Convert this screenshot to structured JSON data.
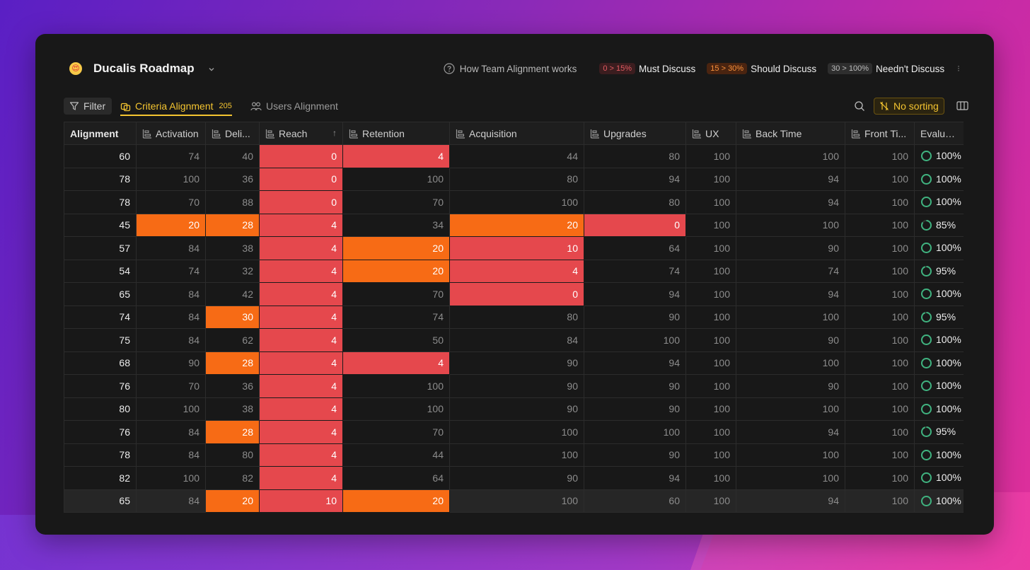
{
  "app": {
    "title": "Ducalis Roadmap",
    "emoji": "😍"
  },
  "legend": {
    "help_label": "How Team Alignment works",
    "items": [
      {
        "range": "0 > 15%",
        "label": "Must Discuss",
        "kind": "must"
      },
      {
        "range": "15 > 30%",
        "label": "Should Discuss",
        "kind": "should"
      },
      {
        "range": "30 > 100%",
        "label": "Needn't Discuss",
        "kind": "neednt"
      }
    ]
  },
  "toolbar": {
    "filter_label": "Filter",
    "tab_criteria": "Criteria Alignment",
    "tab_criteria_count": "205",
    "tab_users": "Users Alignment",
    "sort_label": "No sorting"
  },
  "colors": {
    "must": "#e5484d",
    "should": "#f76b15",
    "accent": "#f4c430",
    "eval_ring": "#3fb27f"
  },
  "table": {
    "columns": [
      "Alignment",
      "Activation",
      "Deli...",
      "Reach",
      "Retention",
      "Acquisition",
      "Upgrades",
      "UX",
      "Back Time",
      "Front Ti...",
      "Evaluat..."
    ],
    "rows": [
      {
        "a": "60",
        "c": [
          "74",
          "40",
          "0",
          "4",
          "44",
          "80",
          "100",
          "100",
          "100"
        ],
        "k": [
          "",
          "",
          "r",
          "r",
          "",
          "",
          "",
          "",
          ""
        ],
        "e": "100%",
        "p": 100
      },
      {
        "a": "78",
        "c": [
          "100",
          "36",
          "0",
          "100",
          "80",
          "94",
          "100",
          "94",
          "100"
        ],
        "k": [
          "",
          "",
          "r",
          "",
          "",
          "",
          "",
          "",
          ""
        ],
        "e": "100%",
        "p": 100
      },
      {
        "a": "78",
        "c": [
          "70",
          "88",
          "0",
          "70",
          "100",
          "80",
          "100",
          "94",
          "100"
        ],
        "k": [
          "",
          "",
          "r",
          "",
          "",
          "",
          "",
          "",
          ""
        ],
        "e": "100%",
        "p": 100
      },
      {
        "a": "45",
        "c": [
          "20",
          "28",
          "4",
          "34",
          "20",
          "0",
          "100",
          "100",
          "100"
        ],
        "k": [
          "o",
          "o",
          "r",
          "",
          "o",
          "r",
          "",
          "",
          ""
        ],
        "e": "85%",
        "p": 85
      },
      {
        "a": "57",
        "c": [
          "84",
          "38",
          "4",
          "20",
          "10",
          "64",
          "100",
          "90",
          "100"
        ],
        "k": [
          "",
          "",
          "r",
          "o",
          "r",
          "",
          "",
          "",
          ""
        ],
        "e": "100%",
        "p": 100
      },
      {
        "a": "54",
        "c": [
          "74",
          "32",
          "4",
          "20",
          "4",
          "74",
          "100",
          "74",
          "100"
        ],
        "k": [
          "",
          "",
          "r",
          "o",
          "r",
          "",
          "",
          "",
          ""
        ],
        "e": "95%",
        "p": 95
      },
      {
        "a": "65",
        "c": [
          "84",
          "42",
          "4",
          "70",
          "0",
          "94",
          "100",
          "94",
          "100"
        ],
        "k": [
          "",
          "",
          "r",
          "",
          "r",
          "",
          "",
          "",
          ""
        ],
        "e": "100%",
        "p": 100
      },
      {
        "a": "74",
        "c": [
          "84",
          "30",
          "4",
          "74",
          "80",
          "90",
          "100",
          "100",
          "100"
        ],
        "k": [
          "",
          "o",
          "r",
          "",
          "",
          "",
          "",
          "",
          ""
        ],
        "e": "95%",
        "p": 95
      },
      {
        "a": "75",
        "c": [
          "84",
          "62",
          "4",
          "50",
          "84",
          "100",
          "100",
          "90",
          "100"
        ],
        "k": [
          "",
          "",
          "r",
          "",
          "",
          "",
          "",
          "",
          ""
        ],
        "e": "100%",
        "p": 100
      },
      {
        "a": "68",
        "c": [
          "90",
          "28",
          "4",
          "4",
          "90",
          "94",
          "100",
          "100",
          "100"
        ],
        "k": [
          "",
          "o",
          "r",
          "r",
          "",
          "",
          "",
          "",
          ""
        ],
        "e": "100%",
        "p": 100
      },
      {
        "a": "76",
        "c": [
          "70",
          "36",
          "4",
          "100",
          "90",
          "90",
          "100",
          "90",
          "100"
        ],
        "k": [
          "",
          "",
          "r",
          "",
          "",
          "",
          "",
          "",
          ""
        ],
        "e": "100%",
        "p": 100
      },
      {
        "a": "80",
        "c": [
          "100",
          "38",
          "4",
          "100",
          "90",
          "90",
          "100",
          "100",
          "100"
        ],
        "k": [
          "",
          "",
          "r",
          "",
          "",
          "",
          "",
          "",
          ""
        ],
        "e": "100%",
        "p": 100
      },
      {
        "a": "76",
        "c": [
          "84",
          "28",
          "4",
          "70",
          "100",
          "100",
          "100",
          "94",
          "100"
        ],
        "k": [
          "",
          "o",
          "r",
          "",
          "",
          "",
          "",
          "",
          ""
        ],
        "e": "95%",
        "p": 95
      },
      {
        "a": "78",
        "c": [
          "84",
          "80",
          "4",
          "44",
          "100",
          "90",
          "100",
          "100",
          "100"
        ],
        "k": [
          "",
          "",
          "r",
          "",
          "",
          "",
          "",
          "",
          ""
        ],
        "e": "100%",
        "p": 100
      },
      {
        "a": "82",
        "c": [
          "100",
          "82",
          "4",
          "64",
          "90",
          "94",
          "100",
          "100",
          "100"
        ],
        "k": [
          "",
          "",
          "r",
          "",
          "",
          "",
          "",
          "",
          ""
        ],
        "e": "100%",
        "p": 100
      },
      {
        "a": "65",
        "c": [
          "84",
          "20",
          "10",
          "20",
          "100",
          "60",
          "100",
          "94",
          "100"
        ],
        "k": [
          "",
          "o",
          "r",
          "o",
          "",
          "",
          "",
          "",
          ""
        ],
        "e": "100%",
        "p": 100,
        "highlight": true
      }
    ]
  }
}
